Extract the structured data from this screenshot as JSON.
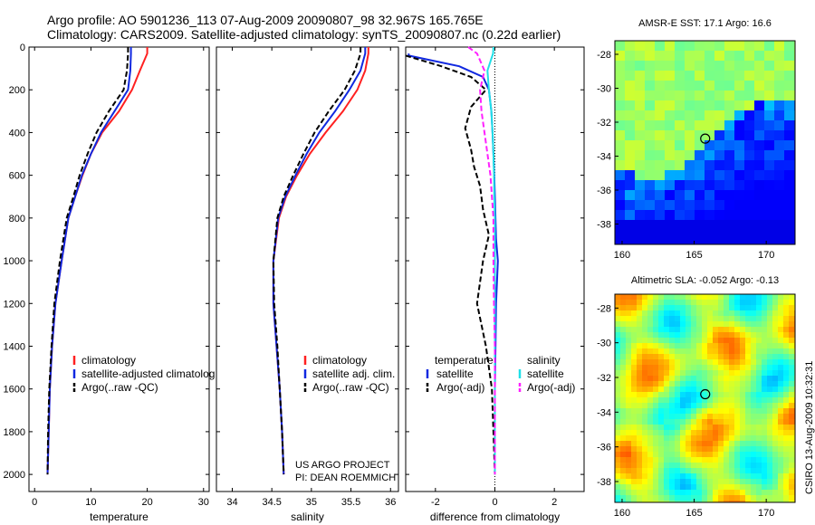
{
  "header": {
    "line1": "Argo profile: AO 5901236_113 07-Aug-2009 20090807_98 32.967S 165.765E",
    "line2": "Climatology: CARS2009. Satellite-adjusted climatology: synTS_20090807.nc (0.22d earlier)"
  },
  "credit": {
    "line1": "US ARGO PROJECT",
    "line2": "PI: DEAN ROEMMICH"
  },
  "vertical_caption": "CSIRO 13-Aug-2009 10:32:31",
  "colors": {
    "climatology": "#ff2020",
    "satellite": "#1028e0",
    "argo": "#000000",
    "salinity_sat": "#20e0e8",
    "salinity_argo": "#ff20ff"
  },
  "chart_data": [
    {
      "type": "line",
      "panel": "temperature",
      "xlabel": "temperature",
      "ylabel": "",
      "xlim": [
        -1,
        31
      ],
      "ylim": [
        2080,
        0
      ],
      "y_reversed": true,
      "xticks": [
        "0",
        "10",
        "20",
        "30"
      ],
      "yticks": [
        "0",
        "200",
        "400",
        "600",
        "800",
        "1000",
        "1200",
        "1400",
        "1600",
        "1800",
        "2000"
      ],
      "legend": [
        "climatology",
        "satellite-adjusted climatolog",
        "Argo(..raw -QC)"
      ],
      "legend_position": "lower-center",
      "series": [
        {
          "name": "climatology",
          "color": "#ff2020",
          "x": [
            20.0,
            20.0,
            18.7,
            17.3,
            15.0,
            12.0,
            10.0,
            8.5,
            7.2,
            6.0,
            4.8,
            3.7,
            3.1,
            2.7,
            2.5,
            2.3
          ],
          "y": [
            0,
            30,
            110,
            200,
            300,
            400,
            500,
            600,
            700,
            800,
            1000,
            1200,
            1400,
            1600,
            1800,
            2000
          ]
        },
        {
          "name": "satellite-adjusted climatolog",
          "color": "#1028e0",
          "x": [
            17.1,
            17.1,
            17.0,
            16.6,
            14.2,
            11.8,
            10.0,
            8.4,
            7.2,
            6.0,
            4.8,
            3.7,
            3.1,
            2.7,
            2.5,
            2.3
          ],
          "y": [
            0,
            30,
            110,
            200,
            300,
            400,
            500,
            600,
            700,
            800,
            1000,
            1200,
            1400,
            1600,
            1800,
            2000
          ]
        },
        {
          "name": "Argo(..raw -QC)",
          "color": "#000000",
          "x": [
            16.6,
            16.6,
            16.4,
            15.8,
            13.2,
            11.0,
            9.4,
            8.0,
            6.9,
            5.7,
            4.5,
            3.5,
            3.0,
            2.6,
            2.4,
            2.3
          ],
          "y": [
            0,
            30,
            110,
            200,
            300,
            400,
            500,
            600,
            700,
            800,
            1000,
            1200,
            1400,
            1600,
            1800,
            2000
          ]
        }
      ]
    },
    {
      "type": "line",
      "panel": "salinity",
      "xlabel": "salinity",
      "ylabel": "",
      "xlim": [
        33.8,
        36.1
      ],
      "ylim": [
        2080,
        0
      ],
      "y_reversed": true,
      "xticks": [
        "34",
        "34.5",
        "35",
        "35.5",
        "36"
      ],
      "legend": [
        "climatology",
        "satellite adj. clim.",
        "Argo(..raw -QC)"
      ],
      "legend_position": "lower-center",
      "series": [
        {
          "name": "climatology",
          "color": "#ff2020",
          "x": [
            35.72,
            35.72,
            35.68,
            35.58,
            35.4,
            35.18,
            34.98,
            34.82,
            34.68,
            34.59,
            34.52,
            34.52,
            34.56,
            34.6,
            34.63,
            34.65
          ],
          "y": [
            0,
            30,
            110,
            200,
            300,
            400,
            500,
            600,
            700,
            800,
            1000,
            1200,
            1400,
            1600,
            1800,
            2000
          ]
        },
        {
          "name": "satellite adj. clim.",
          "color": "#1028e0",
          "x": [
            35.68,
            35.68,
            35.62,
            35.48,
            35.3,
            35.1,
            34.94,
            34.8,
            34.67,
            34.58,
            34.52,
            34.52,
            34.56,
            34.6,
            34.63,
            34.65
          ],
          "y": [
            0,
            30,
            110,
            200,
            300,
            400,
            500,
            600,
            700,
            800,
            1000,
            1200,
            1400,
            1600,
            1800,
            2000
          ]
        },
        {
          "name": "Argo(..raw -QC)",
          "color": "#000000",
          "x": [
            35.62,
            35.62,
            35.55,
            35.42,
            35.22,
            35.04,
            34.9,
            34.77,
            34.65,
            34.57,
            34.52,
            34.53,
            34.57,
            34.6,
            34.63,
            34.65
          ],
          "y": [
            0,
            30,
            110,
            200,
            300,
            400,
            500,
            600,
            700,
            800,
            1000,
            1200,
            1400,
            1600,
            1800,
            2000
          ]
        }
      ]
    },
    {
      "type": "line",
      "panel": "difference",
      "xlabel": "difference from climatology",
      "ylabel": "",
      "xlim": [
        -3,
        3
      ],
      "ylim": [
        2080,
        0
      ],
      "y_reversed": true,
      "xticks": [
        "-2",
        "0",
        "2"
      ],
      "legend": [
        "temperature",
        "satellite",
        "Argo(-adj)",
        "salinity",
        "satellite",
        "Argo(-adj)"
      ],
      "legend_position": "lower-center",
      "series": [
        {
          "name": "satellite",
          "group": "temperature",
          "color": "#1028e0",
          "x": [
            -2.9,
            -2.9,
            -1.2,
            -0.4,
            -0.2,
            -0.12,
            -0.08,
            -0.05,
            -0.02,
            0.0,
            0.04,
            0.1,
            0.04,
            0.02,
            0.0,
            0.0,
            0.0
          ],
          "y": [
            30,
            40,
            90,
            140,
            200,
            300,
            400,
            500,
            600,
            700,
            900,
            1000,
            1200,
            1400,
            1600,
            1800,
            2000
          ]
        },
        {
          "name": "Argo(-adj)",
          "group": "temperature",
          "color": "#000000",
          "x": [
            -3.0,
            -1.8,
            -0.8,
            -0.3,
            -0.8,
            -1.0,
            -0.8,
            -0.7,
            -0.5,
            -0.4,
            -0.2,
            -0.4,
            -0.6,
            -0.3,
            -0.1,
            -0.05,
            0.0
          ],
          "y": [
            40,
            90,
            140,
            200,
            280,
            380,
            480,
            560,
            650,
            760,
            880,
            1000,
            1200,
            1400,
            1600,
            1800,
            2000
          ]
        },
        {
          "name": "satellite",
          "group": "salinity",
          "color": "#20e0e8",
          "x": [
            -0.05,
            -0.06,
            -0.25,
            -0.2,
            -0.12,
            -0.08,
            -0.05,
            -0.03,
            -0.02,
            0.0,
            0.0,
            0.0,
            0.0,
            0.0,
            0.0,
            0.0
          ],
          "y": [
            0,
            30,
            110,
            200,
            300,
            400,
            500,
            600,
            700,
            800,
            1000,
            1200,
            1400,
            1600,
            1800,
            2000
          ]
        },
        {
          "name": "Argo(-adj)",
          "group": "salinity",
          "color": "#ff20ff",
          "x": [
            -0.9,
            -0.6,
            -0.35,
            -0.5,
            -0.45,
            -0.35,
            -0.25,
            -0.15,
            -0.1,
            -0.05,
            -0.05,
            -0.03,
            0.0,
            0.0,
            0.0,
            0.0
          ],
          "y": [
            0,
            30,
            110,
            200,
            300,
            400,
            500,
            600,
            700,
            800,
            1000,
            1200,
            1400,
            1600,
            1800,
            2000
          ]
        }
      ]
    },
    {
      "type": "heatmap",
      "panel": "sst-map",
      "title": "AMSR-E SST: 17.1  Argo: 16.6",
      "xlim": [
        159.5,
        172
      ],
      "ylim": [
        -39.2,
        -27.2
      ],
      "xticks": [
        "160",
        "165",
        "170"
      ],
      "yticks": [
        "-28",
        "-30",
        "-32",
        "-34",
        "-36",
        "-38"
      ],
      "marker": {
        "lon": 165.765,
        "lat": -32.967
      },
      "colormap": "jet",
      "description_values": "warm north (green/cyan), cool south (dark blue)"
    },
    {
      "type": "heatmap",
      "panel": "sla-map",
      "title": "Altimetric SLA: -0.052  Argo: -0.13",
      "xlim": [
        159.5,
        172
      ],
      "ylim": [
        -39.2,
        -27.2
      ],
      "xticks": [
        "160",
        "165",
        "170"
      ],
      "yticks": [
        "-28",
        "-30",
        "-32",
        "-34",
        "-36",
        "-38"
      ],
      "marker": {
        "lon": 165.765,
        "lat": -32.967
      },
      "colormap": "jet"
    }
  ]
}
